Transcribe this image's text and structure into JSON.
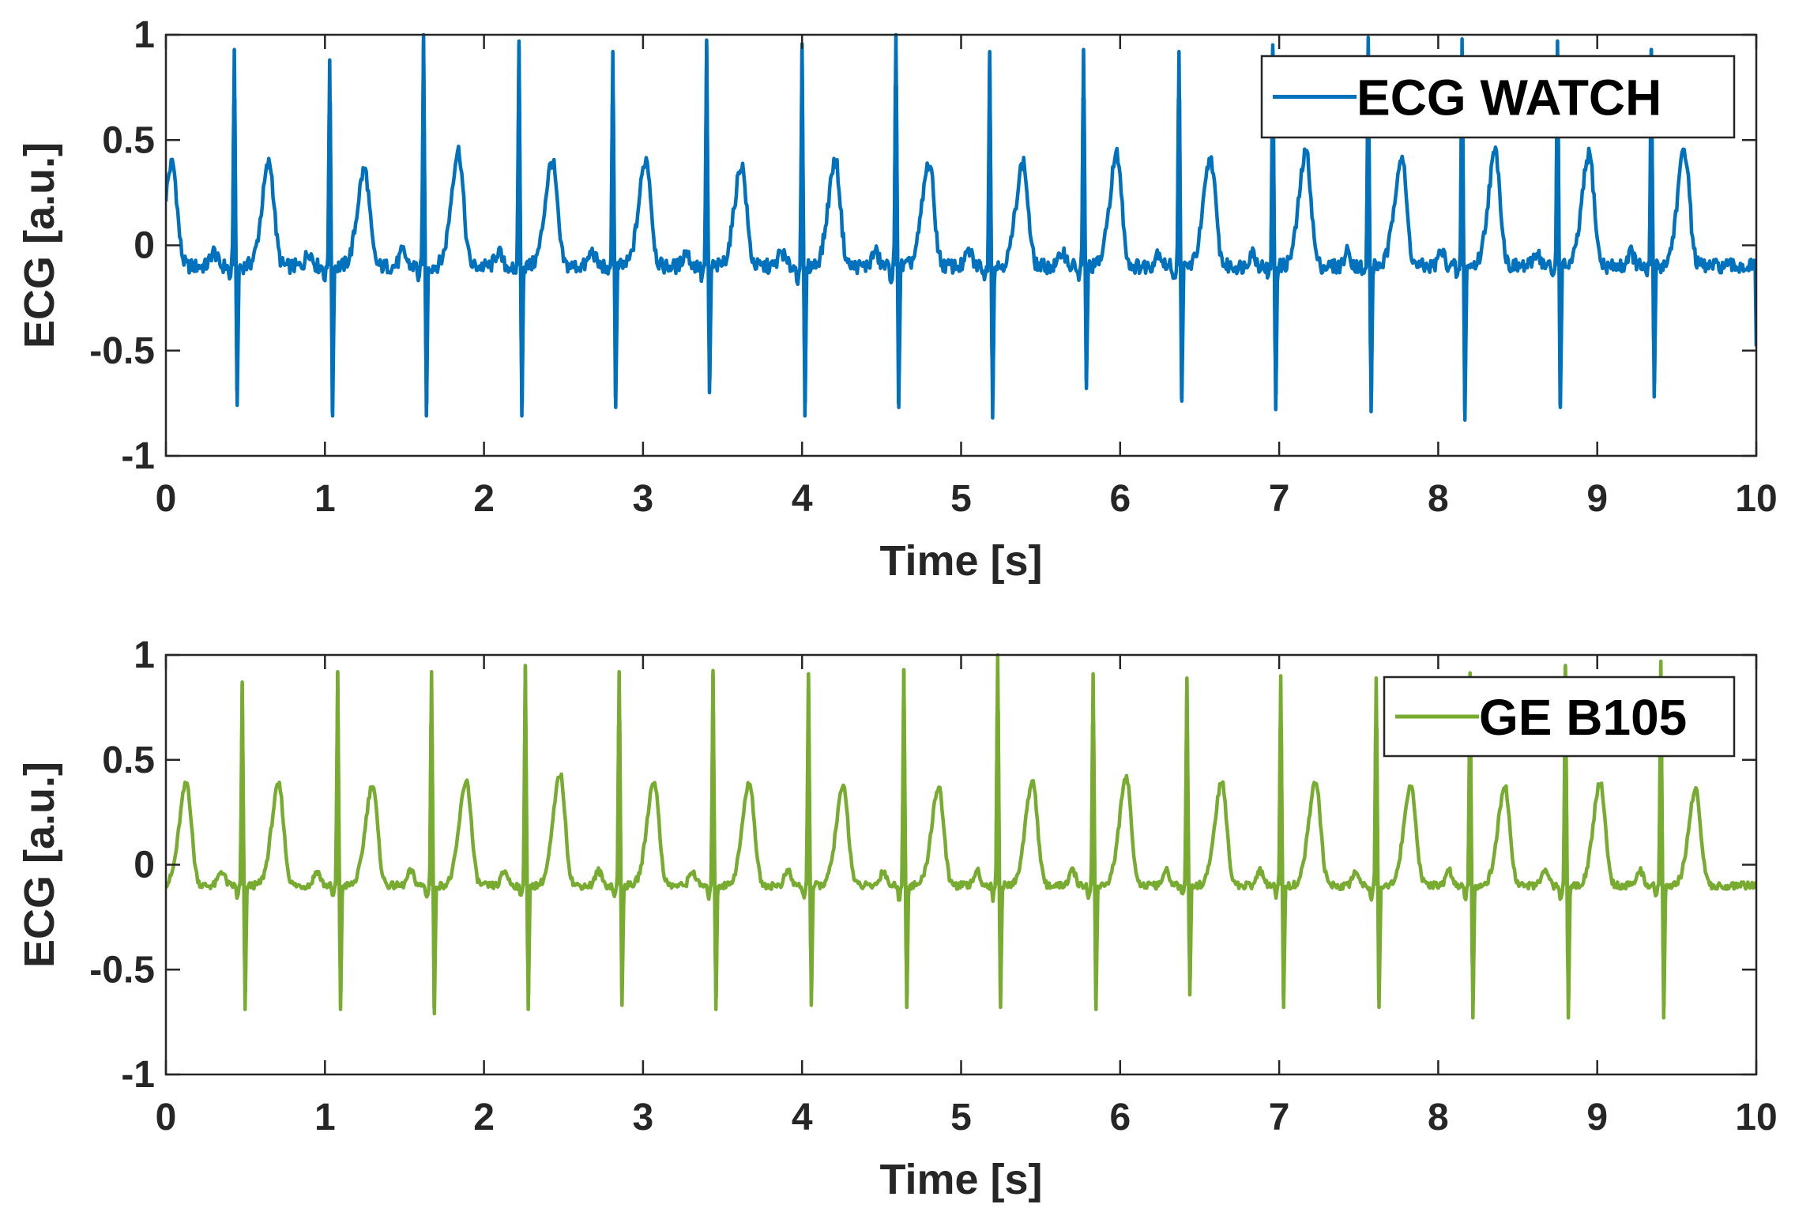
{
  "chart_data": [
    {
      "type": "line",
      "series": [
        {
          "name": "ECG WATCH",
          "color": "#0072BD"
        }
      ],
      "xlabel": "Time [s]",
      "ylabel": "ECG [a.u.]",
      "xlim": [
        0,
        10
      ],
      "ylim": [
        -1,
        1
      ],
      "xticks": [
        "0",
        "1",
        "2",
        "3",
        "4",
        "5",
        "6",
        "7",
        "8",
        "9",
        "10"
      ],
      "yticks": [
        "1",
        "0.5",
        "0",
        "-0.5",
        "-1"
      ],
      "legend_position": "top-right",
      "grid": false,
      "beats": [
        {
          "t": 0.43,
          "r": 0.93,
          "s": -0.76
        },
        {
          "t": 1.03,
          "r": 0.88,
          "s": -0.81
        },
        {
          "t": 1.62,
          "r": 1.0,
          "s": -0.81
        },
        {
          "t": 2.22,
          "r": 0.97,
          "s": -0.81
        },
        {
          "t": 2.81,
          "r": 0.92,
          "s": -0.77
        },
        {
          "t": 3.4,
          "r": 0.95,
          "s": -0.7
        },
        {
          "t": 4.0,
          "r": 0.93,
          "s": -0.81
        },
        {
          "t": 4.59,
          "r": 1.0,
          "s": -0.77
        },
        {
          "t": 5.18,
          "r": 0.92,
          "s": -0.82
        },
        {
          "t": 5.77,
          "r": 0.93,
          "s": -0.68
        },
        {
          "t": 6.37,
          "r": 0.92,
          "s": -0.74
        },
        {
          "t": 6.96,
          "r": 0.93,
          "s": -0.78
        },
        {
          "t": 7.56,
          "r": 0.97,
          "s": -0.79
        },
        {
          "t": 8.15,
          "r": 0.98,
          "s": -0.83
        },
        {
          "t": 8.75,
          "r": 0.97,
          "s": -0.77
        },
        {
          "t": 9.34,
          "r": 0.93,
          "s": -0.72
        }
      ],
      "t_waves": [
        {
          "t": 0.04,
          "amp": 0.39
        },
        {
          "t": 0.65,
          "amp": 0.39
        },
        {
          "t": 1.25,
          "amp": 0.36
        },
        {
          "t": 1.84,
          "amp": 0.45
        },
        {
          "t": 2.43,
          "amp": 0.4
        },
        {
          "t": 3.02,
          "amp": 0.41
        },
        {
          "t": 3.62,
          "amp": 0.38
        },
        {
          "t": 4.21,
          "amp": 0.4
        },
        {
          "t": 4.8,
          "amp": 0.39
        },
        {
          "t": 5.39,
          "amp": 0.39
        },
        {
          "t": 5.98,
          "amp": 0.43
        },
        {
          "t": 6.57,
          "amp": 0.41
        },
        {
          "t": 7.17,
          "amp": 0.44
        },
        {
          "t": 7.77,
          "amp": 0.42
        },
        {
          "t": 8.36,
          "amp": 0.44
        },
        {
          "t": 8.95,
          "amp": 0.43
        },
        {
          "t": 9.55,
          "amp": 0.45
        }
      ],
      "end_value": -0.48
    },
    {
      "type": "line",
      "series": [
        {
          "name": "GE B105",
          "color": "#77AC30"
        }
      ],
      "xlabel": "Time [s]",
      "ylabel": "ECG [a.u.]",
      "xlim": [
        0,
        10
      ],
      "ylim": [
        -1,
        1
      ],
      "xticks": [
        "0",
        "1",
        "2",
        "3",
        "4",
        "5",
        "6",
        "7",
        "8",
        "9",
        "10"
      ],
      "yticks": [
        "1",
        "0.5",
        "0",
        "-0.5",
        "-1"
      ],
      "legend_position": "top-right",
      "grid": false,
      "beats": [
        {
          "t": 0.48,
          "r": 0.86,
          "s": -0.69
        },
        {
          "t": 1.08,
          "r": 0.92,
          "s": -0.69
        },
        {
          "t": 1.67,
          "r": 0.92,
          "s": -0.71
        },
        {
          "t": 2.26,
          "r": 0.95,
          "s": -0.69
        },
        {
          "t": 2.85,
          "r": 0.92,
          "s": -0.67
        },
        {
          "t": 3.44,
          "r": 0.91,
          "s": -0.69
        },
        {
          "t": 4.04,
          "r": 0.91,
          "s": -0.67
        },
        {
          "t": 4.64,
          "r": 0.93,
          "s": -0.68
        },
        {
          "t": 5.23,
          "r": 1.0,
          "s": -0.68
        },
        {
          "t": 5.83,
          "r": 0.91,
          "s": -0.69
        },
        {
          "t": 6.42,
          "r": 0.89,
          "s": -0.62
        },
        {
          "t": 7.01,
          "r": 0.9,
          "s": -0.68
        },
        {
          "t": 7.61,
          "r": 0.89,
          "s": -0.68
        },
        {
          "t": 8.2,
          "r": 0.91,
          "s": -0.73
        },
        {
          "t": 8.8,
          "r": 0.95,
          "s": -0.73
        },
        {
          "t": 9.4,
          "r": 0.97,
          "s": -0.73
        }
      ],
      "t_waves": [
        {
          "t": 0.13,
          "amp": 0.39
        },
        {
          "t": 0.71,
          "amp": 0.38
        },
        {
          "t": 1.3,
          "amp": 0.38
        },
        {
          "t": 1.89,
          "amp": 0.4
        },
        {
          "t": 2.48,
          "amp": 0.43
        },
        {
          "t": 3.07,
          "amp": 0.4
        },
        {
          "t": 3.67,
          "amp": 0.39
        },
        {
          "t": 4.26,
          "amp": 0.37
        },
        {
          "t": 4.86,
          "amp": 0.37
        },
        {
          "t": 5.45,
          "amp": 0.4
        },
        {
          "t": 6.04,
          "amp": 0.41
        },
        {
          "t": 6.64,
          "amp": 0.39
        },
        {
          "t": 7.23,
          "amp": 0.39
        },
        {
          "t": 7.83,
          "amp": 0.38
        },
        {
          "t": 8.42,
          "amp": 0.37
        },
        {
          "t": 9.02,
          "amp": 0.39
        },
        {
          "t": 9.62,
          "amp": 0.36
        }
      ],
      "end_value": -0.1
    }
  ]
}
